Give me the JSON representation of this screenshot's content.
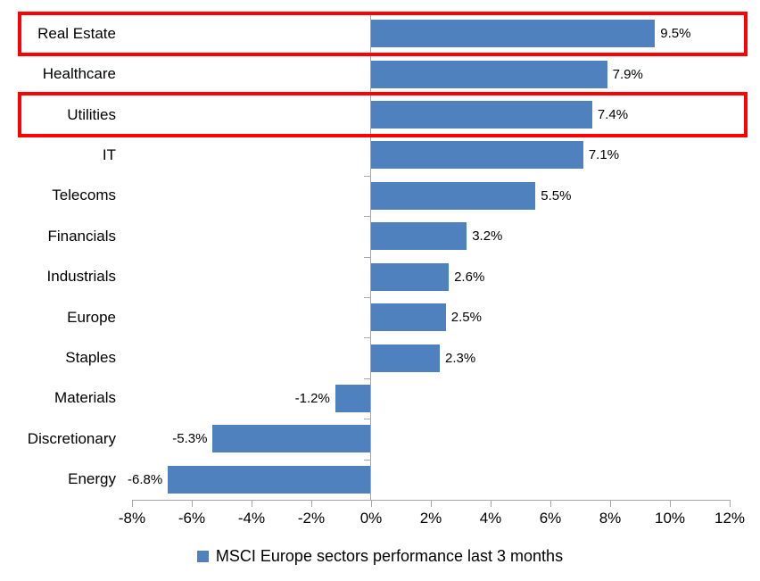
{
  "chart_data": {
    "type": "bar",
    "orientation": "horizontal",
    "title": "",
    "categories": [
      "Real Estate",
      "Healthcare",
      "Utilities",
      "IT",
      "Telecoms",
      "Financials",
      "Industrials",
      "Europe",
      "Staples",
      "Materials",
      "Discretionary",
      "Energy"
    ],
    "values": [
      9.5,
      7.9,
      7.4,
      7.1,
      5.5,
      3.2,
      2.6,
      2.5,
      2.3,
      -1.2,
      -5.3,
      -6.8
    ],
    "data_labels": [
      "9.5%",
      "7.9%",
      "7.4%",
      "7.1%",
      "5.5%",
      "3.2%",
      "2.6%",
      "2.5%",
      "2.3%",
      "-1.2%",
      "-5.3%",
      "-6.8%"
    ],
    "xlabel": "",
    "ylabel": "",
    "xlim": [
      -8,
      12
    ],
    "x_tick_step": 2,
    "x_ticks": [
      "-8%",
      "-6%",
      "-4%",
      "-2%",
      "0%",
      "2%",
      "4%",
      "6%",
      "8%",
      "10%",
      "12%"
    ],
    "grid": false,
    "legend": {
      "label": "MSCI Europe sectors performance last 3 months",
      "position": "bottom"
    },
    "colors": {
      "bar": "#4E81BD",
      "axis": "#A6A6A6",
      "text": "#000000",
      "highlight": "#FF0000"
    },
    "highlighted_categories": [
      "Real Estate",
      "Utilities"
    ]
  }
}
